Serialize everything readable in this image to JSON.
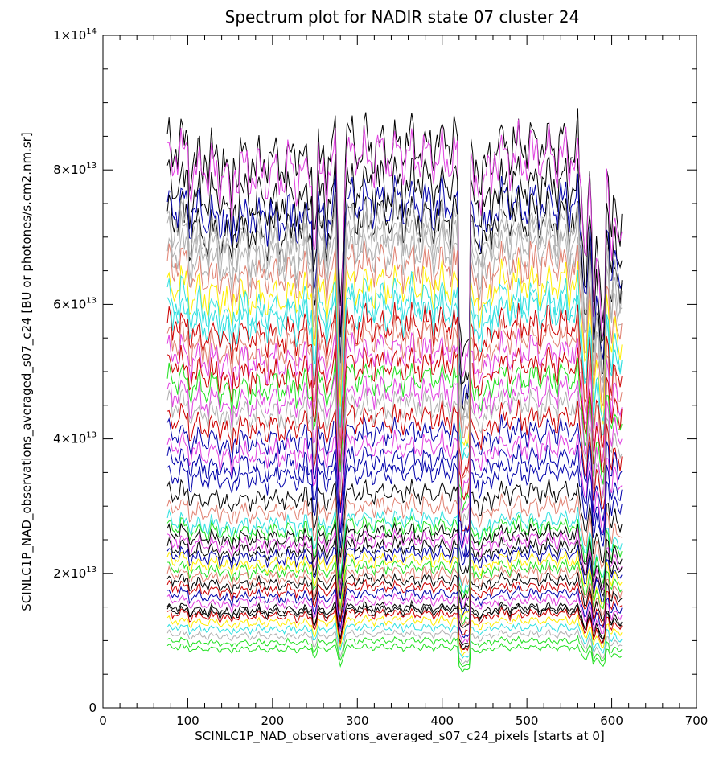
{
  "chart_data": {
    "type": "line",
    "title": "Spectrum plot for NADIR state 07 cluster 24",
    "xlabel": "SCINLC1P_NAD_observations_averaged_s07_c24_pixels [starts at 0]",
    "ylabel": "SCINLC1P_NAD_observations_averaged_s07_c24 [BU or photones/s.cm2.nm.sr]",
    "xlim": [
      0,
      700
    ],
    "ylim": [
      0,
      100000000000000.0
    ],
    "xticks": [
      "0",
      "100",
      "200",
      "300",
      "400",
      "500",
      "600",
      "700"
    ],
    "yticks": [
      {
        "mant": "0",
        "exp": ""
      },
      {
        "mant": "2×10",
        "exp": "13"
      },
      {
        "mant": "4×10",
        "exp": "13"
      },
      {
        "mant": "6×10",
        "exp": "13"
      },
      {
        "mant": "8×10",
        "exp": "13"
      },
      {
        "mant": "1×10",
        "exp": "14"
      }
    ],
    "pixel_range": [
      76,
      612
    ],
    "series_levels_e13": [
      8.4,
      8.2,
      7.8,
      7.5,
      7.3,
      7.2,
      7.0,
      6.8,
      6.6,
      6.3,
      6.1,
      5.9,
      5.7,
      5.5,
      5.3,
      5.1,
      4.9,
      4.7,
      4.5,
      4.3,
      4.1,
      3.9,
      3.7,
      3.5,
      3.2,
      3.0,
      2.8,
      2.7,
      2.6,
      2.5,
      2.4,
      2.3,
      2.2,
      2.1,
      2.0,
      1.9,
      1.8,
      1.7,
      1.6,
      1.5,
      1.45,
      1.4,
      1.3,
      1.2,
      1.1,
      1.0,
      0.9
    ],
    "series_colors": [
      "#000000",
      "#e040e0",
      "#000000",
      "#0000aa",
      "#000000",
      "#b0b0b0",
      "#b0b0b0",
      "#b0b0b0",
      "#e08070",
      "#ffee00",
      "#30e0e0",
      "#30e0e0",
      "#cc0000",
      "#e08070",
      "#e040e0",
      "#cc0000",
      "#20e020",
      "#e040e0",
      "#b0b0b0",
      "#cc0000",
      "#0000aa",
      "#e040e0",
      "#0000aa",
      "#0000aa",
      "#000000",
      "#e08070",
      "#30e0e0",
      "#20e020",
      "#000000",
      "#e040e0",
      "#000000",
      "#0000aa",
      "#ffee00",
      "#20e020",
      "#e08070",
      "#000000",
      "#cc0000",
      "#0000aa",
      "#e040e0",
      "#000000",
      "#000000",
      "#cc0000",
      "#ffee00",
      "#30e0e0",
      "#b0b0b0",
      "#20e020",
      "#20e020"
    ],
    "grid": false,
    "legend": "none"
  }
}
